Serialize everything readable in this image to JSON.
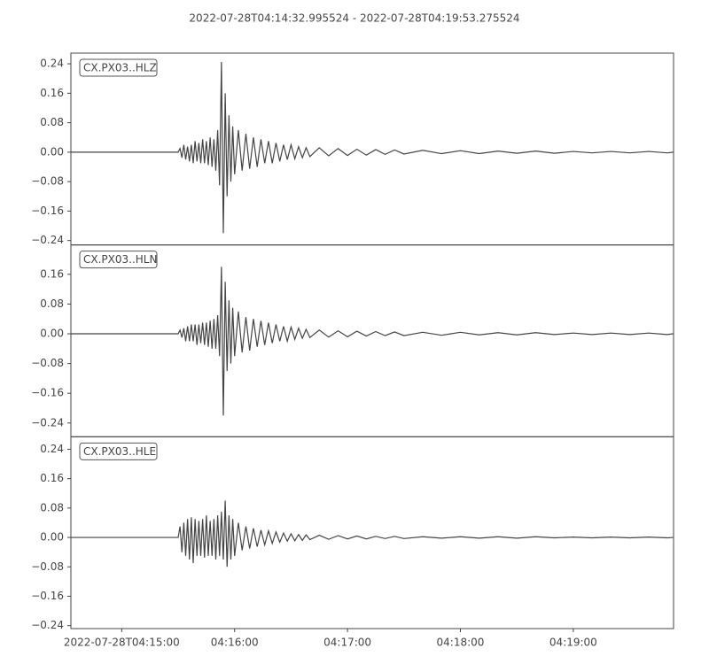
{
  "chart_data": {
    "type": "line",
    "title": "2022-07-28T04:14:32.995524  -  2022-07-28T04:19:53.275524",
    "xlim": [
      "04:14:32.995524",
      "04:19:53.275524"
    ],
    "xticks": [
      {
        "value": "04:15:00",
        "label": "2022-07-28T04:15:00"
      },
      "04:16:00",
      "04:17:00",
      "04:18:00",
      "04:19:00"
    ],
    "x": [
      "04:14:33",
      "04:15:30",
      "04:15:31",
      "04:15:32",
      "04:15:33",
      "04:15:34",
      "04:15:35",
      "04:15:36",
      "04:15:37",
      "04:15:38",
      "04:15:39",
      "04:15:40",
      "04:15:41",
      "04:15:42",
      "04:15:43",
      "04:15:44",
      "04:15:45",
      "04:15:46",
      "04:15:47",
      "04:15:48",
      "04:15:49",
      "04:15:50",
      "04:15:51",
      "04:15:52",
      "04:15:53",
      "04:15:54",
      "04:15:55",
      "04:15:56",
      "04:15:57",
      "04:15:58",
      "04:15:59",
      "04:16:00",
      "04:16:02",
      "04:16:04",
      "04:16:06",
      "04:16:08",
      "04:16:10",
      "04:16:12",
      "04:16:14",
      "04:16:16",
      "04:16:18",
      "04:16:20",
      "04:16:22",
      "04:16:24",
      "04:16:26",
      "04:16:28",
      "04:16:30",
      "04:16:32",
      "04:16:34",
      "04:16:36",
      "04:16:38",
      "04:16:40",
      "04:16:45",
      "04:16:50",
      "04:16:55",
      "04:17:00",
      "04:17:05",
      "04:17:10",
      "04:17:15",
      "04:17:20",
      "04:17:25",
      "04:17:30",
      "04:17:40",
      "04:17:50",
      "04:18:00",
      "04:18:10",
      "04:18:20",
      "04:18:30",
      "04:18:40",
      "04:18:50",
      "04:19:00",
      "04:19:10",
      "04:19:20",
      "04:19:30",
      "04:19:40",
      "04:19:50",
      "04:19:53"
    ],
    "series": [
      {
        "name": "CX.PX03..HLZ",
        "color": "#444444",
        "ylim": [
          -0.252,
          0.269
        ],
        "yticks": [
          {
            "value": -0.24,
            "label": "−0.24"
          },
          {
            "value": -0.16,
            "label": "−0.16"
          },
          {
            "value": -0.08,
            "label": "−0.08"
          },
          {
            "value": 0,
            "label": "0.00"
          },
          0.08,
          0.16,
          0.24
        ],
        "values": [
          0,
          0,
          0.01,
          -0.015,
          0.02,
          -0.02,
          0.015,
          -0.025,
          0.02,
          -0.03,
          0.03,
          -0.025,
          0.025,
          -0.03,
          0.035,
          -0.03,
          0.03,
          -0.035,
          0.04,
          -0.04,
          0.035,
          -0.05,
          0.06,
          -0.09,
          0.245,
          -0.22,
          0.16,
          -0.12,
          0.1,
          -0.08,
          0.07,
          -0.06,
          0.06,
          -0.05,
          0.05,
          -0.045,
          0.04,
          -0.04,
          0.035,
          -0.03,
          0.03,
          -0.03,
          0.025,
          -0.025,
          0.02,
          -0.02,
          0.02,
          -0.018,
          0.015,
          -0.015,
          0.012,
          -0.012,
          0.012,
          -0.01,
          0.01,
          -0.009,
          0.008,
          -0.008,
          0.007,
          -0.006,
          0.006,
          -0.005,
          0.005,
          -0.004,
          0.004,
          -0.004,
          0.003,
          -0.003,
          0.003,
          -0.003,
          0.002,
          -0.002,
          0.002,
          -0.002,
          0.002,
          -0.002,
          0
        ]
      },
      {
        "name": "CX.PX03..HLN",
        "color": "#444444",
        "ylim": [
          -0.277,
          0.239
        ],
        "yticks": [
          {
            "value": -0.24,
            "label": "−0.24"
          },
          {
            "value": -0.16,
            "label": "−0.16"
          },
          {
            "value": -0.08,
            "label": "−0.08"
          },
          {
            "value": 0,
            "label": "0.00"
          },
          0.08,
          0.16
        ],
        "values": [
          0,
          0,
          0.01,
          -0.01,
          0.015,
          -0.02,
          0.02,
          -0.02,
          0.025,
          -0.02,
          0.025,
          -0.03,
          0.025,
          -0.025,
          0.03,
          -0.03,
          0.03,
          -0.035,
          0.035,
          -0.04,
          0.04,
          -0.04,
          0.05,
          -0.06,
          0.18,
          -0.22,
          0.14,
          -0.1,
          0.09,
          -0.08,
          0.07,
          -0.06,
          0.06,
          -0.05,
          0.045,
          -0.045,
          0.04,
          -0.035,
          0.035,
          -0.03,
          0.03,
          -0.025,
          0.025,
          -0.02,
          0.02,
          -0.02,
          0.018,
          -0.015,
          0.015,
          -0.012,
          0.012,
          -0.01,
          0.01,
          -0.009,
          0.008,
          -0.008,
          0.007,
          -0.006,
          0.006,
          -0.005,
          0.005,
          -0.005,
          0.004,
          -0.004,
          0.004,
          -0.003,
          0.003,
          -0.003,
          0.003,
          -0.002,
          0.002,
          -0.002,
          0.002,
          -0.002,
          0.002,
          -0.002,
          0
        ]
      },
      {
        "name": "CX.PX03..HLE",
        "color": "#444444",
        "ylim": [
          -0.248,
          0.274
        ],
        "yticks": [
          {
            "value": -0.24,
            "label": "−0.24"
          },
          {
            "value": -0.16,
            "label": "−0.16"
          },
          {
            "value": -0.08,
            "label": "−0.08"
          },
          {
            "value": 0,
            "label": "0.00"
          },
          0.08,
          0.16,
          0.24
        ],
        "values": [
          0,
          0,
          0.03,
          -0.04,
          0.04,
          -0.05,
          0.05,
          -0.06,
          0.055,
          -0.07,
          0.05,
          -0.05,
          0.045,
          -0.05,
          0.05,
          -0.055,
          0.06,
          -0.05,
          0.045,
          -0.05,
          0.05,
          -0.06,
          0.06,
          -0.05,
          0.07,
          -0.06,
          0.1,
          -0.08,
          0.06,
          -0.06,
          0.05,
          -0.05,
          0.04,
          -0.035,
          0.03,
          -0.03,
          0.025,
          -0.025,
          0.02,
          -0.02,
          0.018,
          -0.016,
          0.015,
          -0.013,
          0.012,
          -0.01,
          0.01,
          -0.009,
          0.008,
          -0.008,
          0.007,
          -0.006,
          0.006,
          -0.005,
          0.005,
          -0.004,
          0.004,
          -0.004,
          0.003,
          -0.003,
          0.003,
          -0.003,
          0.002,
          -0.002,
          0.002,
          -0.002,
          0.002,
          -0.002,
          0.002,
          -0.001,
          0.001,
          -0.001,
          0.001,
          -0.001,
          0.001,
          -0.001,
          0
        ]
      }
    ]
  }
}
